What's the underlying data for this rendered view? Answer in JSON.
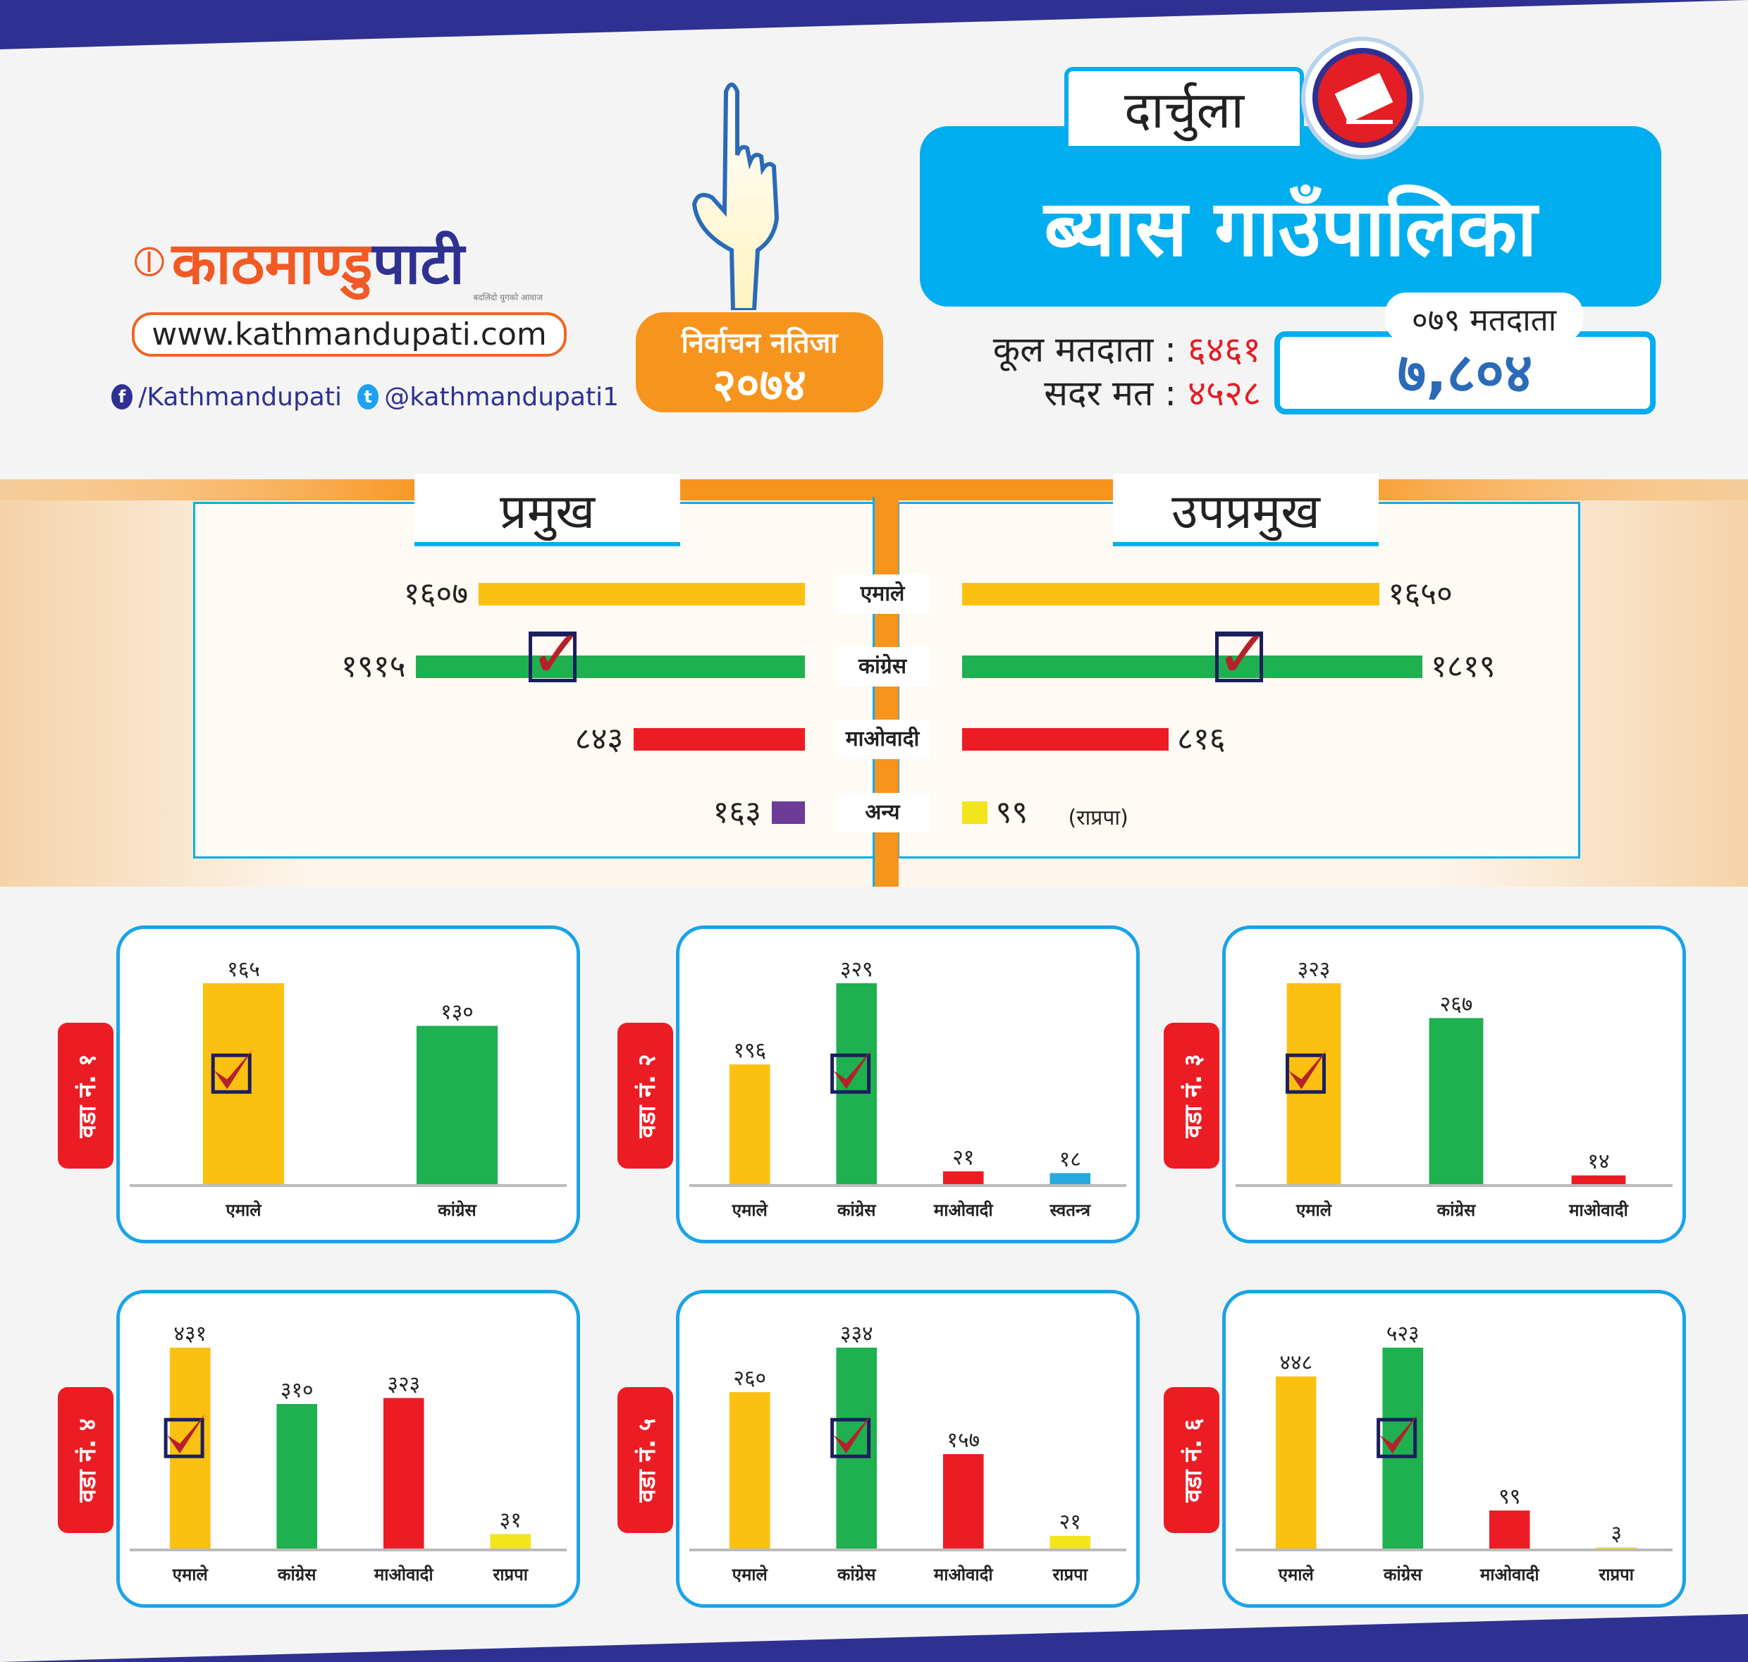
{
  "brand": {
    "logo_text": "काठमाण्डु",
    "logo_text2": "पाटी",
    "tagline": "बदलिंदो युगको आवाज",
    "url": "www.kathmandupati.com",
    "facebook": "/Kathmandupati",
    "twitter": "@kathmandupati1"
  },
  "election": {
    "title": "निर्वाचन नतिजा",
    "year": "२०७४"
  },
  "district": "दार्चुला",
  "municipality": "ब्यास गाउँपालिका",
  "stats": {
    "total_label": "कूल मतदाता :",
    "total_value": "६४६१",
    "valid_label": "सदर मत :",
    "valid_value": "४५२८"
  },
  "voters_079": {
    "label": "०७९ मतदाता",
    "value": "७,८०४"
  },
  "colors": {
    "uml": "#fcc010",
    "congress": "#1fb050",
    "maoist": "#ed1c24",
    "other": "#6d3b98",
    "rpp": "#f2e51b",
    "independent": "#27aae1",
    "accent": "#00aeef",
    "orange": "#f7941d",
    "navy": "#2e3192"
  },
  "summary": {
    "chief_label": "प्रमुख",
    "deputy_label": "उपप्रमुख",
    "categories": [
      "एमाले",
      "कांग्रेस",
      "माओवादी",
      "अन्य"
    ],
    "chief": [
      {
        "value": 1607,
        "label": "१६०७",
        "color": "#fcc010"
      },
      {
        "value": 1915,
        "label": "१९१५",
        "color": "#1fb050",
        "winner": true
      },
      {
        "value": 843,
        "label": "८४३",
        "color": "#ed1c24"
      },
      {
        "value": 163,
        "label": "१६३",
        "color": "#6d3b98"
      }
    ],
    "deputy": [
      {
        "value": 1650,
        "label": "१६५०",
        "color": "#fcc010"
      },
      {
        "value": 1819,
        "label": "१८१९",
        "color": "#1fb050",
        "winner": true
      },
      {
        "value": 816,
        "label": "८१६",
        "color": "#ed1c24"
      },
      {
        "value": 99,
        "label": "९९",
        "color": "#f2e51b",
        "note": "(राप्रपा)"
      }
    ]
  },
  "chart_data": [
    {
      "type": "bar",
      "title": "वडा नं. १",
      "categories": [
        "एमाले",
        "कांग्रेस"
      ],
      "values": [
        165,
        130
      ],
      "labels": [
        "१६५",
        "१३०"
      ],
      "colors": [
        "#fcc010",
        "#1fb050"
      ],
      "winner": 0
    },
    {
      "type": "bar",
      "title": "वडा नं. २",
      "categories": [
        "एमाले",
        "कांग्रेस",
        "माओवादी",
        "स्वतन्त्र"
      ],
      "values": [
        196,
        329,
        21,
        18
      ],
      "labels": [
        "१९६",
        "३२९",
        "२१",
        "१८"
      ],
      "colors": [
        "#fcc010",
        "#1fb050",
        "#ed1c24",
        "#27aae1"
      ],
      "winner": 1
    },
    {
      "type": "bar",
      "title": "वडा नं. ३",
      "categories": [
        "एमाले",
        "कांग्रेस",
        "माओवादी"
      ],
      "values": [
        323,
        267,
        14
      ],
      "labels": [
        "३२३",
        "२६७",
        "१४"
      ],
      "colors": [
        "#fcc010",
        "#1fb050",
        "#ed1c24"
      ],
      "winner": 0
    },
    {
      "type": "bar",
      "title": "वडा नं. ४",
      "categories": [
        "एमाले",
        "कांग्रेस",
        "माओवादी",
        "राप्रपा"
      ],
      "values": [
        431,
        310,
        323,
        31
      ],
      "labels": [
        "४३१",
        "३१०",
        "३२३",
        "३१"
      ],
      "colors": [
        "#fcc010",
        "#1fb050",
        "#ed1c24",
        "#f2e51b"
      ],
      "winner": 0
    },
    {
      "type": "bar",
      "title": "वडा नं. ५",
      "categories": [
        "एमाले",
        "कांग्रेस",
        "माओवादी",
        "राप्रपा"
      ],
      "values": [
        260,
        334,
        157,
        21
      ],
      "labels": [
        "२६०",
        "३३४",
        "१५७",
        "२१"
      ],
      "colors": [
        "#fcc010",
        "#1fb050",
        "#ed1c24",
        "#f2e51b"
      ],
      "winner": 1
    },
    {
      "type": "bar",
      "title": "वडा नं. ६",
      "categories": [
        "एमाले",
        "कांग्रेस",
        "माओवादी",
        "राप्रपा"
      ],
      "values": [
        448,
        523,
        99,
        3
      ],
      "labels": [
        "४४८",
        "५२३",
        "९९",
        "३"
      ],
      "colors": [
        "#fcc010",
        "#1fb050",
        "#ed1c24",
        "#f2e51b"
      ],
      "winner": 1
    }
  ]
}
